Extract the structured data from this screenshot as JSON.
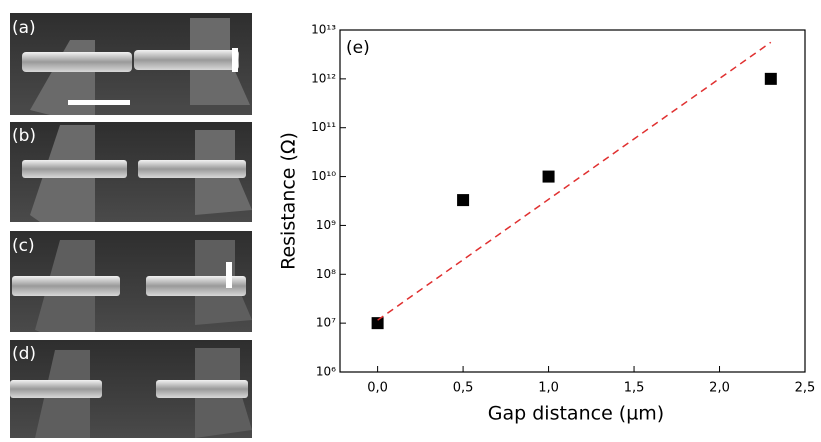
{
  "panels": [
    "(a)",
    "(b)",
    "(c)",
    "(d)"
  ],
  "chart_data": {
    "type": "scatter",
    "annotation": "(e)",
    "x_label": "Gap distance (µm)",
    "y_label": "Resistance (Ω)",
    "log_y": true,
    "xlim": [
      -0.22,
      2.5
    ],
    "xticks": [
      {
        "value": 0,
        "label": "0,0"
      },
      {
        "value": 0.5,
        "label": "0,5"
      },
      {
        "value": 1,
        "label": "1,0"
      },
      {
        "value": 1.5,
        "label": "1,5"
      },
      {
        "value": 2,
        "label": "2,0"
      },
      {
        "value": 2.5,
        "label": "2,5"
      }
    ],
    "ylim": [
      1000000,
      10000000000000
    ],
    "yticks": [
      {
        "value": 1000000,
        "label": "10⁶"
      },
      {
        "value": 10000000,
        "label": "10⁷"
      },
      {
        "value": 100000000,
        "label": "10⁸"
      },
      {
        "value": 1000000000,
        "label": "10⁹"
      },
      {
        "value": 10000000000,
        "label": "10¹⁰"
      },
      {
        "value": 100000000000,
        "label": "10¹¹"
      },
      {
        "value": 1000000000000,
        "label": "10¹²"
      },
      {
        "value": 10000000000000,
        "label": "10¹³"
      }
    ],
    "series": [
      {
        "x": [
          0,
          0.5,
          1,
          2.3
        ],
        "values": [
          10000000,
          3300000000,
          10000000000,
          1000000000000
        ],
        "color": "#000000",
        "marker": "square"
      },
      {
        "x": [
          0,
          2.3
        ],
        "values": [
          11500000,
          5600000000000
        ],
        "color": "#e03030",
        "style": "dashed"
      }
    ]
  }
}
